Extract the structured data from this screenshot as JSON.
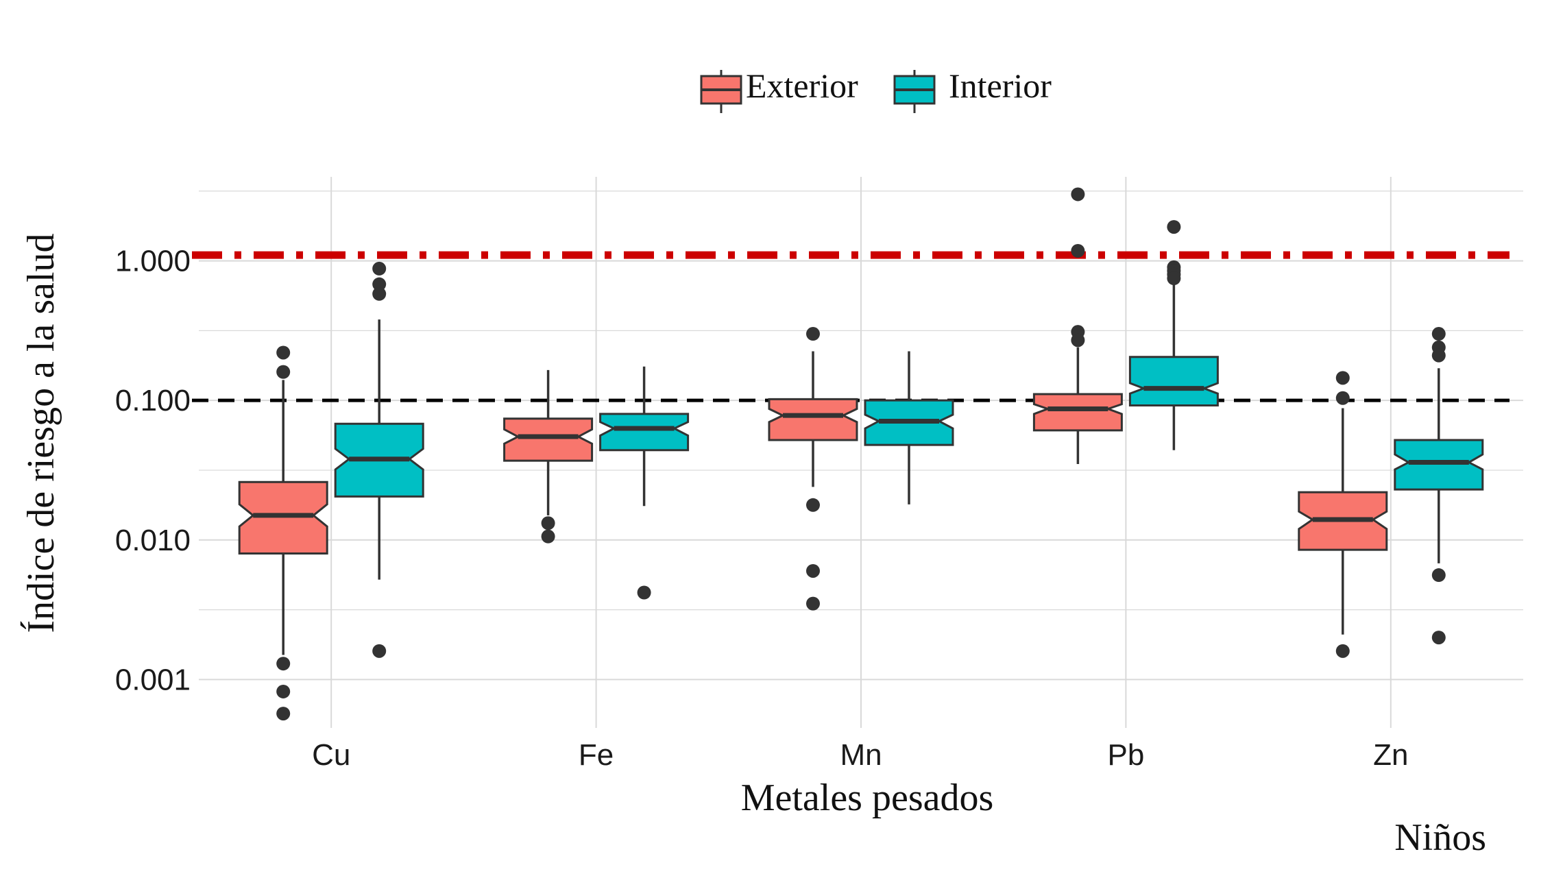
{
  "chart_data": {
    "type": "boxplot",
    "notched": true,
    "xlabel": "Metales pesados",
    "ylabel": "Índice de riesgo a la salud",
    "caption": "Niños",
    "y_scale": "log10",
    "ylim": [
      0.00045,
      4
    ],
    "y_ticks": [
      0.001,
      0.01,
      0.1,
      1
    ],
    "y_tick_labels": [
      "0.001",
      "0.010",
      "0.100",
      "1.000"
    ],
    "grid": true,
    "legend_position": "top",
    "categories": [
      "Cu",
      "Fe",
      "Mn",
      "Pb",
      "Zn"
    ],
    "reference_lines": [
      {
        "value": 1.1,
        "style": "dash-dot",
        "color": "#cc0000"
      },
      {
        "value": 0.1,
        "style": "dashed",
        "color": "#000000"
      }
    ],
    "series": [
      {
        "name": "Exterior",
        "color": "#f8766d",
        "boxes": [
          {
            "category": "Cu",
            "lower_whisker": 0.0015,
            "q1": 0.008,
            "median": 0.015,
            "q3": 0.026,
            "upper_whisker": 0.14,
            "notch": [
              0.0125,
              0.018
            ],
            "outliers": [
              0.22,
              0.16,
              0.0013,
              0.00082,
              0.00057
            ]
          },
          {
            "category": "Fe",
            "lower_whisker": 0.015,
            "q1": 0.037,
            "median": 0.055,
            "q3": 0.074,
            "upper_whisker": 0.165,
            "notch": [
              0.049,
              0.062
            ],
            "outliers": [
              0.0132,
              0.0106
            ]
          },
          {
            "category": "Mn",
            "lower_whisker": 0.024,
            "q1": 0.052,
            "median": 0.078,
            "q3": 0.102,
            "upper_whisker": 0.225,
            "notch": [
              0.07,
              0.087
            ],
            "outliers": [
              0.3,
              0.0178,
              0.006,
              0.0035
            ]
          },
          {
            "category": "Pb",
            "lower_whisker": 0.035,
            "q1": 0.061,
            "median": 0.087,
            "q3": 0.111,
            "upper_whisker": 0.24,
            "notch": [
              0.08,
              0.094
            ],
            "outliers": [
              3.0,
              1.18,
              0.31,
              0.27
            ]
          },
          {
            "category": "Zn",
            "lower_whisker": 0.0021,
            "q1": 0.0085,
            "median": 0.014,
            "q3": 0.022,
            "upper_whisker": 0.088,
            "notch": [
              0.012,
              0.016
            ],
            "outliers": [
              0.145,
              0.104,
              0.0016
            ]
          }
        ]
      },
      {
        "name": "Interior",
        "color": "#00bfc4",
        "boxes": [
          {
            "category": "Cu",
            "lower_whisker": 0.0052,
            "q1": 0.0205,
            "median": 0.038,
            "q3": 0.068,
            "upper_whisker": 0.38,
            "notch": [
              0.032,
              0.045
            ],
            "outliers": [
              0.88,
              0.68,
              0.58,
              0.0016
            ]
          },
          {
            "category": "Fe",
            "lower_whisker": 0.0175,
            "q1": 0.044,
            "median": 0.063,
            "q3": 0.08,
            "upper_whisker": 0.175,
            "notch": [
              0.056,
              0.07
            ],
            "outliers": [
              0.0042
            ]
          },
          {
            "category": "Mn",
            "lower_whisker": 0.018,
            "q1": 0.048,
            "median": 0.071,
            "q3": 0.1,
            "upper_whisker": 0.225,
            "notch": [
              0.063,
              0.079
            ],
            "outliers": []
          },
          {
            "category": "Pb",
            "lower_whisker": 0.044,
            "q1": 0.092,
            "median": 0.122,
            "q3": 0.205,
            "upper_whisker": 0.7,
            "notch": [
              0.112,
              0.133
            ],
            "outliers": [
              1.75,
              0.9,
              0.85,
              0.8,
              0.75
            ]
          },
          {
            "category": "Zn",
            "lower_whisker": 0.0068,
            "q1": 0.023,
            "median": 0.036,
            "q3": 0.052,
            "upper_whisker": 0.17,
            "notch": [
              0.032,
              0.041
            ],
            "outliers": [
              0.3,
              0.24,
              0.21,
              0.0056,
              0.002
            ]
          }
        ]
      }
    ]
  }
}
